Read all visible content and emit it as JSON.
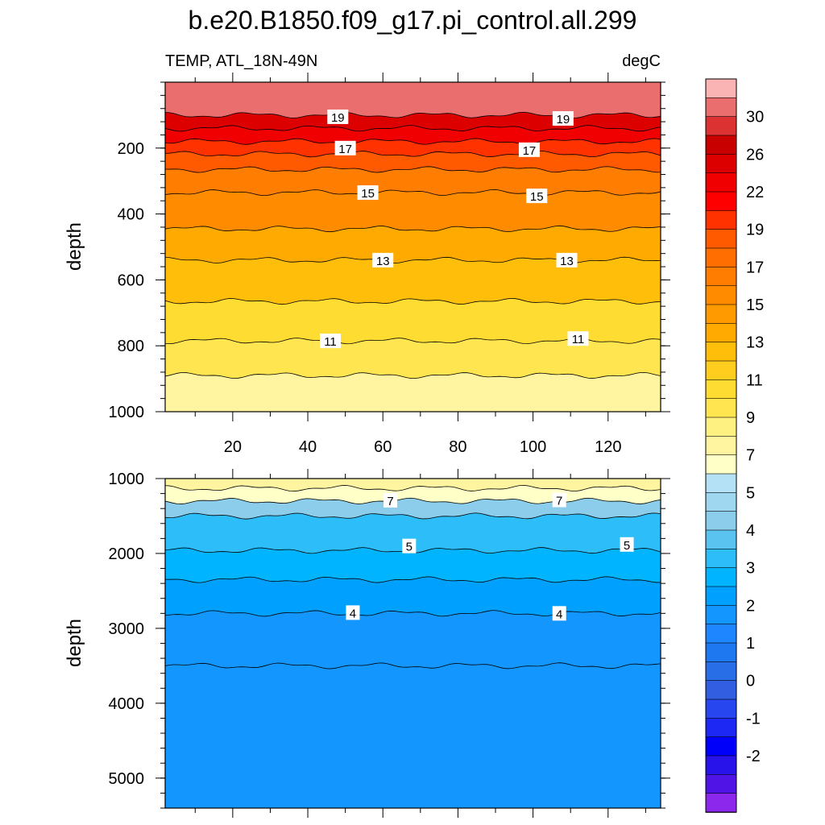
{
  "figure": {
    "title": "b.e20.B1850.f09_g17.pi_control.all.299",
    "left_string": "TEMP, ATL_18N-49N",
    "right_string": "degC"
  },
  "chart_data": [
    {
      "type": "contour",
      "panel": "upper",
      "ylabel": "depth",
      "x_range": [
        2,
        134
      ],
      "y_range": [
        0,
        1000
      ],
      "y_reversed": true,
      "x_ticks": [
        20,
        40,
        60,
        80,
        100,
        120
      ],
      "y_ticks": [
        200,
        400,
        600,
        800,
        1000
      ],
      "contour_lines": [
        {
          "level": 20,
          "depth": 100
        },
        {
          "level": 19,
          "depth": 140
        },
        {
          "level": 18,
          "depth": 180
        },
        {
          "level": 17,
          "depth": 218
        },
        {
          "level": 16,
          "depth": 265
        },
        {
          "level": 15,
          "depth": 335
        },
        {
          "level": 14,
          "depth": 445
        },
        {
          "level": 13,
          "depth": 540
        },
        {
          "level": 12,
          "depth": 665
        },
        {
          "level": 11,
          "depth": 785
        },
        {
          "level": 10,
          "depth": 890
        }
      ],
      "line_labels": [
        {
          "text": "19",
          "x": 48,
          "depth": 105
        },
        {
          "text": "19",
          "x": 108,
          "depth": 110
        },
        {
          "text": "17",
          "x": 50,
          "depth": 200
        },
        {
          "text": "17",
          "x": 99,
          "depth": 205
        },
        {
          "text": "15",
          "x": 56,
          "depth": 335
        },
        {
          "text": "15",
          "x": 101,
          "depth": 345
        },
        {
          "text": "13",
          "x": 60,
          "depth": 540
        },
        {
          "text": "13",
          "x": 109,
          "depth": 540
        },
        {
          "text": "11",
          "x": 46,
          "depth": 785
        },
        {
          "text": "11",
          "x": 112,
          "depth": 778
        }
      ]
    },
    {
      "type": "contour",
      "panel": "lower",
      "ylabel": "depth",
      "x_range": [
        2,
        134
      ],
      "y_range": [
        1000,
        5400
      ],
      "y_reversed": true,
      "y_ticks": [
        1000,
        2000,
        3000,
        4000,
        5000
      ],
      "contour_lines": [
        {
          "level": 9,
          "depth": 1130
        },
        {
          "level": 7,
          "depth": 1300
        },
        {
          "level": 6,
          "depth": 1500
        },
        {
          "level": 5,
          "depth": 1960
        },
        {
          "level": 4.5,
          "depth": 2350
        },
        {
          "level": 4,
          "depth": 2800
        },
        {
          "level": 3.5,
          "depth": 3500
        }
      ],
      "line_labels": [
        {
          "text": "7",
          "x": 62,
          "depth": 1290
        },
        {
          "text": "7",
          "x": 107,
          "depth": 1285
        },
        {
          "text": "5",
          "x": 67,
          "depth": 1900
        },
        {
          "text": "5",
          "x": 125,
          "depth": 1880
        },
        {
          "text": "4",
          "x": 52,
          "depth": 2790
        },
        {
          "text": "4",
          "x": 107,
          "depth": 2800
        }
      ]
    }
  ],
  "colorbar": {
    "labels": [
      "30",
      "26",
      "22",
      "19",
      "17",
      "15",
      "13",
      "11",
      "9",
      "7",
      "5",
      "4",
      "3",
      "2",
      "1",
      "0",
      "-1",
      "-2"
    ],
    "colors": [
      "#FAB4B4",
      "#EB6E6E",
      "#DC3232",
      "#C80000",
      "#DC0000",
      "#F00000",
      "#FF0000",
      "#FF3200",
      "#FF5A00",
      "#FF6E00",
      "#FF7D00",
      "#FF8C00",
      "#FF9B00",
      "#FFAA00",
      "#FFBE0A",
      "#FFCD1E",
      "#FFDC32",
      "#FFE650",
      "#FFF082",
      "#FFF5A0",
      "#FFFFC8",
      "#B4E1F5",
      "#A0D7F0",
      "#8CCDEB",
      "#5AC3F0",
      "#2DBEFA",
      "#00B4FF",
      "#00A0FF",
      "#1496FF",
      "#1E87FF",
      "#1E78F0",
      "#286EE6",
      "#325FE1",
      "#2846F0",
      "#1E28F5",
      "#0000FA",
      "#2814EB",
      "#5014E6",
      "#8C28EB"
    ]
  }
}
